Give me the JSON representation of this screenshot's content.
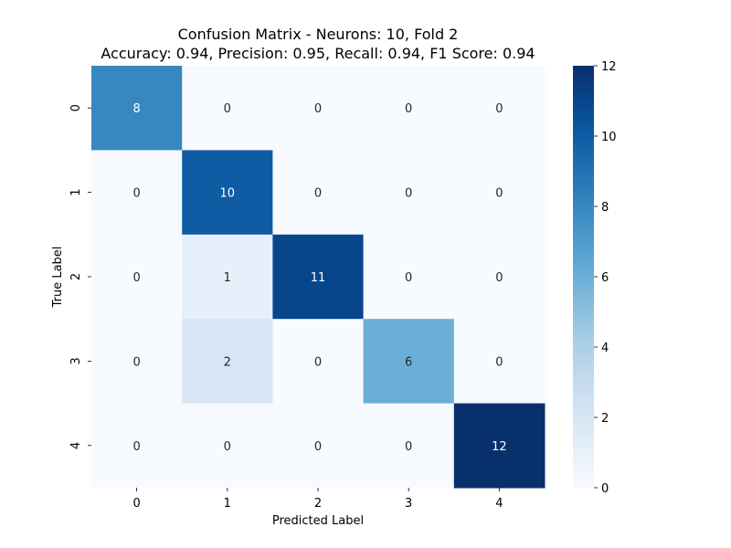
{
  "chart_data": {
    "type": "heatmap",
    "title_line1": "Confusion Matrix - Neurons: 10, Fold 2",
    "title_line2": "Accuracy: 0.94, Precision: 0.95, Recall: 0.94, F1 Score: 0.94",
    "xlabel": "Predicted Label",
    "ylabel": "True Label",
    "x_categories": [
      "0",
      "1",
      "2",
      "3",
      "4"
    ],
    "y_categories": [
      "0",
      "1",
      "2",
      "3",
      "4"
    ],
    "matrix": [
      [
        8,
        0,
        0,
        0,
        0
      ],
      [
        0,
        10,
        0,
        0,
        0
      ],
      [
        0,
        1,
        11,
        0,
        0
      ],
      [
        0,
        2,
        0,
        6,
        0
      ],
      [
        0,
        0,
        0,
        0,
        12
      ]
    ],
    "colormap": "Blues",
    "color_range": [
      0,
      12
    ],
    "colorbar_ticks": [
      "0",
      "2",
      "4",
      "6",
      "8",
      "10",
      "12"
    ]
  }
}
